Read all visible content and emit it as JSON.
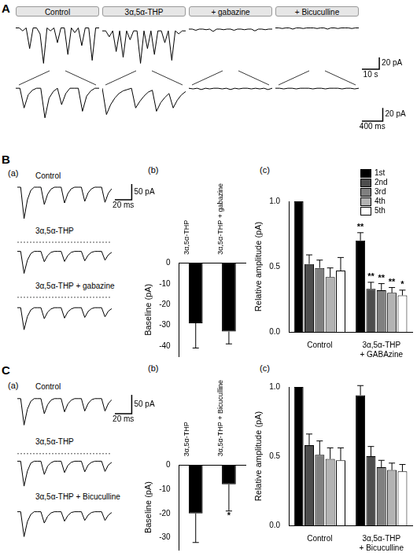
{
  "panel_labels": [
    "A",
    "B",
    "C"
  ],
  "subpanel_labels": [
    "(a)",
    "(b)",
    "(c)"
  ],
  "chart_data": [
    {
      "type": "line",
      "title": "Control",
      "x": [
        0,
        2,
        4,
        6,
        8,
        10,
        12,
        14,
        16,
        18,
        20,
        22,
        24,
        26,
        28,
        30,
        32,
        34,
        36,
        38,
        40,
        42,
        44,
        46,
        48
      ],
      "values": [
        0,
        0,
        -5,
        0,
        -35,
        0,
        0,
        -10,
        -60,
        0,
        -5,
        0,
        -25,
        0,
        0,
        -45,
        0,
        -8,
        0,
        -30,
        0,
        0,
        -55,
        0,
        0
      ],
      "xlim": [
        0,
        48
      ],
      "ylim": [
        -70,
        10
      ],
      "color": "#000000",
      "tick_labels": false,
      "grid": false
    },
    {
      "type": "line",
      "title": "3α,5α-THP",
      "x": [
        0,
        2,
        4,
        6,
        8,
        10,
        12,
        14,
        16,
        18,
        20,
        22,
        24,
        26,
        28,
        30,
        32,
        34,
        36,
        38,
        40,
        42,
        44,
        46,
        48
      ],
      "values": [
        -5,
        -5,
        -15,
        -5,
        -40,
        -5,
        -50,
        -5,
        -20,
        -5,
        -5,
        -60,
        -5,
        -35,
        -5,
        -45,
        -5,
        -5,
        -25,
        -5,
        -55,
        -5,
        -10,
        -5,
        -5
      ],
      "xlim": [
        0,
        48
      ],
      "ylim": [
        -70,
        10
      ],
      "color": "#000000",
      "tick_labels": false,
      "grid": false
    },
    {
      "type": "line",
      "title": "+ gabazine",
      "x": [
        0,
        2,
        4,
        6,
        8,
        10,
        12,
        14,
        16,
        18,
        20,
        22,
        24,
        26,
        28,
        30,
        32,
        34,
        36,
        38,
        40,
        42,
        44,
        46,
        48
      ],
      "values": [
        -2,
        -2,
        -4,
        -2,
        -2,
        -3,
        -2,
        -6,
        -2,
        -2,
        -3,
        -2,
        -2,
        -4,
        -2,
        -2,
        -3,
        -2,
        -2,
        -5,
        -2,
        -2,
        -3,
        -2,
        -2
      ],
      "xlim": [
        0,
        48
      ],
      "ylim": [
        -70,
        10
      ],
      "color": "#000000",
      "tick_labels": false,
      "grid": false
    },
    {
      "type": "line",
      "title": "+ Bicuculline",
      "x": [
        0,
        2,
        4,
        6,
        8,
        10,
        12,
        14,
        16,
        18,
        20,
        22,
        24,
        26,
        28,
        30,
        32,
        34,
        36,
        38,
        40,
        42,
        44,
        46,
        48
      ],
      "values": [
        0,
        0,
        -1,
        0,
        0,
        -2,
        0,
        0,
        -1,
        0,
        0,
        0,
        -1,
        0,
        0,
        -2,
        0,
        0,
        -1,
        0,
        0,
        0,
        -1,
        0,
        0
      ],
      "xlim": [
        0,
        48
      ],
      "ylim": [
        -70,
        10
      ],
      "color": "#000000",
      "tick_labels": false,
      "grid": false,
      "scale_bar": {
        "x": 10,
        "x_label": "10 s",
        "y": 20,
        "y_label": "20 pA"
      }
    },
    {
      "type": "line",
      "x": [
        0,
        80,
        160,
        240,
        320,
        400,
        480,
        560,
        640,
        720,
        800,
        880,
        960,
        1040,
        1120,
        1200,
        1280,
        1360,
        1440,
        1520,
        1600
      ],
      "values": [
        0,
        0,
        -30,
        -10,
        -3,
        0,
        0,
        -45,
        -15,
        -5,
        0,
        -25,
        -8,
        0,
        0,
        0,
        -35,
        -12,
        -4,
        0,
        0
      ],
      "xlim": [
        0,
        1600
      ],
      "ylim": [
        -50,
        5
      ],
      "color": "#000000",
      "tick_labels": false,
      "grid": false
    },
    {
      "type": "line",
      "x": [
        0,
        80,
        160,
        240,
        320,
        400,
        480,
        560,
        640,
        720,
        800,
        880,
        960,
        1040,
        1120,
        1200,
        1280,
        1360,
        1440,
        1520,
        1600
      ],
      "values": [
        0,
        -40,
        -25,
        -15,
        -8,
        -4,
        -2,
        0,
        -30,
        -20,
        -12,
        -6,
        -3,
        -35,
        -22,
        -14,
        -8,
        -30,
        -18,
        -10,
        -5
      ],
      "xlim": [
        0,
        1600
      ],
      "ylim": [
        -50,
        5
      ],
      "color": "#000000",
      "tick_labels": false,
      "grid": false
    },
    {
      "type": "line",
      "x": [
        0,
        80,
        160,
        240,
        320,
        400,
        480,
        560,
        640,
        720,
        800,
        880,
        960,
        1040,
        1120,
        1200,
        1280,
        1360,
        1440,
        1520,
        1600
      ],
      "values": [
        0,
        -1,
        0,
        -2,
        0,
        -1,
        0,
        0,
        -1,
        0,
        -2,
        0,
        -1,
        0,
        0,
        -1,
        0,
        -1,
        0,
        -2,
        0
      ],
      "xlim": [
        0,
        1600
      ],
      "ylim": [
        -50,
        5
      ],
      "color": "#000000",
      "tick_labels": false,
      "grid": false
    },
    {
      "type": "line",
      "x": [
        0,
        80,
        160,
        240,
        320,
        400,
        480,
        560,
        640,
        720,
        800,
        880,
        960,
        1040,
        1120,
        1200,
        1280,
        1360,
        1440,
        1520,
        1600
      ],
      "values": [
        0,
        0,
        -1,
        0,
        0,
        -1,
        0,
        0,
        0,
        -1,
        0,
        0,
        -1,
        0,
        0,
        0,
        -1,
        0,
        0,
        -1,
        0
      ],
      "xlim": [
        0,
        1600
      ],
      "ylim": [
        -50,
        5
      ],
      "color": "#000000",
      "tick_labels": false,
      "grid": false,
      "scale_bar": {
        "x": 400,
        "x_label": "400 ms",
        "y": 20,
        "y_label": "20 pA"
      }
    },
    {
      "type": "line",
      "title": "Control",
      "x": [
        0,
        4,
        8,
        12,
        16,
        20,
        24,
        28,
        32,
        36,
        40,
        44,
        48,
        52,
        56,
        60,
        64,
        68,
        72,
        76,
        80,
        84,
        88,
        92,
        96,
        100,
        104,
        108,
        112
      ],
      "values": [
        0,
        0,
        -100,
        -40,
        -10,
        0,
        0,
        0,
        -55,
        -22,
        -6,
        0,
        0,
        0,
        -50,
        -20,
        -5,
        0,
        0,
        0,
        -45,
        -18,
        -5,
        0,
        0,
        0,
        -48,
        -19,
        -5
      ],
      "xlim": [
        0,
        112
      ],
      "ylim": [
        -110,
        10
      ],
      "color": "#000000",
      "tick_labels": false,
      "grid": false,
      "scale_bar": {
        "x": 20,
        "x_label": "20 ms",
        "y": 50,
        "y_label": "50 pA"
      }
    },
    {
      "type": "line",
      "title": "3α,5α-THP",
      "x": [
        0,
        4,
        8,
        12,
        16,
        20,
        24,
        28,
        32,
        36,
        40,
        44,
        48,
        52,
        56,
        60,
        64,
        68,
        72,
        76,
        80,
        84,
        88,
        92,
        96,
        100,
        104,
        108,
        112
      ],
      "values": [
        -29,
        -29,
        -99,
        -57,
        -36,
        -29,
        -29,
        -29,
        -62,
        -42,
        -32,
        -29,
        -29,
        -29,
        -61,
        -42,
        -32,
        -29,
        -29,
        -29,
        -59,
        -41,
        -32,
        -29,
        -29,
        -29,
        -57,
        -40,
        -32
      ],
      "xlim": [
        0,
        112
      ],
      "ylim": [
        -110,
        10
      ],
      "color": "#000000",
      "tick_labels": false,
      "grid": false,
      "reference_line": 0
    },
    {
      "type": "line",
      "title": "3α,5α-THP + gabazine",
      "x": [
        0,
        4,
        8,
        12,
        16,
        20,
        24,
        28,
        32,
        36,
        40,
        44,
        48,
        52,
        56,
        60,
        64,
        68,
        72,
        76,
        80,
        84,
        88,
        92,
        96,
        100,
        104,
        108,
        112
      ],
      "values": [
        -33,
        -33,
        -103,
        -61,
        -40,
        -33,
        -33,
        -33,
        -68,
        -47,
        -37,
        -33,
        -33,
        -33,
        -66,
        -46,
        -37,
        -33,
        -33,
        -33,
        -64,
        -45,
        -36,
        -33,
        -33,
        -33,
        -62,
        -44,
        -36
      ],
      "xlim": [
        0,
        112
      ],
      "ylim": [
        -110,
        10
      ],
      "color": "#000000",
      "tick_labels": false,
      "grid": false,
      "reference_line": 0
    },
    {
      "type": "bar",
      "categories": [
        "3α,5α-THP",
        "3α,5α-THP + gabazine"
      ],
      "values": [
        -29,
        -33
      ],
      "errors": [
        12,
        6
      ],
      "color": "#000000",
      "y_label": "Baseline (pA)",
      "ylim": [
        -45,
        0
      ],
      "yticks": [
        -40,
        -30,
        -20,
        -10,
        0
      ],
      "grid": false
    },
    {
      "type": "bar",
      "categories": [
        "Control",
        "3α,5α-THP + GABAzine"
      ],
      "y_label": "Relative amplitude (pA)",
      "ylim": [
        0,
        1.0
      ],
      "yticks": [
        {
          "value": 0,
          "label": "0.0"
        },
        {
          "value": 0.5,
          "label": "0.5"
        },
        {
          "value": 1.0,
          "label": "1.0"
        }
      ],
      "grid": false,
      "legend": "upper right",
      "series": [
        {
          "name": "1st",
          "color": "#000000",
          "values": [
            1.0,
            0.7
          ],
          "errors": [
            null,
            0.06
          ],
          "annotations": [
            null,
            "**"
          ]
        },
        {
          "name": "2nd",
          "color": "#4d4d4d",
          "values": [
            0.52,
            0.33
          ],
          "errors": [
            0.07,
            0.05
          ],
          "annotations": [
            null,
            "**"
          ]
        },
        {
          "name": "3rd",
          "color": "#808080",
          "values": [
            0.49,
            0.32
          ],
          "errors": [
            0.06,
            0.05
          ],
          "annotations": [
            null,
            "**"
          ]
        },
        {
          "name": "4th",
          "color": "#b3b3b3",
          "values": [
            0.42,
            0.3
          ],
          "errors": [
            0.07,
            0.04
          ],
          "annotations": [
            null,
            "**"
          ]
        },
        {
          "name": "5th",
          "color": "#ffffff",
          "values": [
            0.47,
            0.28
          ],
          "errors": [
            0.1,
            0.04
          ],
          "annotations": [
            null,
            "*"
          ]
        }
      ]
    },
    {
      "type": "line",
      "title": "Control",
      "x": [
        0,
        4,
        8,
        12,
        16,
        20,
        24,
        28,
        32,
        36,
        40,
        44,
        48,
        52,
        56,
        60,
        64,
        68,
        72,
        76,
        80,
        84,
        88,
        92,
        96,
        100,
        104,
        108,
        112
      ],
      "values": [
        0,
        0,
        -70,
        -28,
        -7,
        0,
        0,
        0,
        -40,
        -16,
        -4,
        0,
        0,
        0,
        -35,
        -14,
        -4,
        0,
        0,
        0,
        -33,
        -13,
        -3,
        0,
        0,
        0,
        -33,
        -13,
        -3
      ],
      "xlim": [
        0,
        112
      ],
      "ylim": [
        -90,
        10
      ],
      "color": "#000000",
      "tick_labels": false,
      "grid": false,
      "scale_bar": {
        "x": 20,
        "x_label": "20 ms",
        "y": 50,
        "y_label": "50 pA"
      }
    },
    {
      "type": "line",
      "title": "3α,5α-THP",
      "x": [
        0,
        4,
        8,
        12,
        16,
        20,
        24,
        28,
        32,
        36,
        40,
        44,
        48,
        52,
        56,
        60,
        64,
        68,
        72,
        76,
        80,
        84,
        88,
        92,
        96,
        100,
        104,
        108,
        112
      ],
      "values": [
        -20,
        -20,
        -86,
        -46,
        -25,
        -20,
        -20,
        -20,
        -55,
        -33,
        -24,
        -20,
        -20,
        -20,
        -50,
        -31,
        -23,
        -20,
        -20,
        -20,
        -48,
        -30,
        -23,
        -20,
        -20,
        -20,
        -47,
        -30,
        -23
      ],
      "xlim": [
        0,
        112
      ],
      "ylim": [
        -90,
        10
      ],
      "color": "#000000",
      "tick_labels": false,
      "grid": false,
      "reference_line": 0
    },
    {
      "type": "line",
      "title": "3α,5α-THP + Bicuculline",
      "x": [
        0,
        4,
        8,
        12,
        16,
        20,
        24,
        28,
        32,
        36,
        40,
        44,
        48,
        52,
        56,
        60,
        64,
        68,
        72,
        76,
        80,
        84,
        88,
        92,
        96,
        100,
        104,
        108,
        112
      ],
      "values": [
        -8,
        -8,
        -74,
        -34,
        -15,
        -8,
        -8,
        -8,
        -38,
        -20,
        -11,
        -8,
        -8,
        -8,
        -33,
        -18,
        -10,
        -8,
        -8,
        -8,
        -31,
        -17,
        -10,
        -8,
        -8,
        -8,
        -31,
        -17,
        -10
      ],
      "xlim": [
        0,
        112
      ],
      "ylim": [
        -90,
        10
      ],
      "color": "#000000",
      "tick_labels": false,
      "grid": false
    },
    {
      "type": "bar",
      "categories": [
        "3α,5α-THP",
        "3α,5α-THP + Bicuculline"
      ],
      "values": [
        -20,
        -8
      ],
      "errors": [
        12,
        11
      ],
      "annotations": [
        null,
        "*"
      ],
      "color": "#000000",
      "y_label": "Baseline (pA)",
      "ylim": [
        -35,
        0
      ],
      "yticks": [
        -30,
        -20,
        -10,
        0
      ],
      "grid": false
    },
    {
      "type": "bar",
      "categories": [
        "Control",
        "3α,5α-THP + Bicuculline"
      ],
      "y_label": "Relative amplitude (pA)",
      "ylim": [
        0,
        1.0
      ],
      "yticks": [
        {
          "value": 0,
          "label": "0.0"
        },
        {
          "value": 0.5,
          "label": "0.5"
        },
        {
          "value": 1.0,
          "label": "1.0"
        }
      ],
      "grid": false,
      "series": [
        {
          "color": "#000000",
          "values": [
            1.0,
            0.94
          ],
          "errors": [
            null,
            0.07
          ]
        },
        {
          "color": "#4d4d4d",
          "values": [
            0.58,
            0.5
          ],
          "errors": [
            0.08,
            0.07
          ]
        },
        {
          "color": "#808080",
          "values": [
            0.51,
            0.42
          ],
          "errors": [
            0.1,
            0.05
          ]
        },
        {
          "color": "#b3b3b3",
          "values": [
            0.48,
            0.4
          ],
          "errors": [
            0.08,
            0.05
          ]
        },
        {
          "color": "#ffffff",
          "values": [
            0.47,
            0.39
          ],
          "errors": [
            0.09,
            0.05
          ]
        }
      ]
    }
  ]
}
